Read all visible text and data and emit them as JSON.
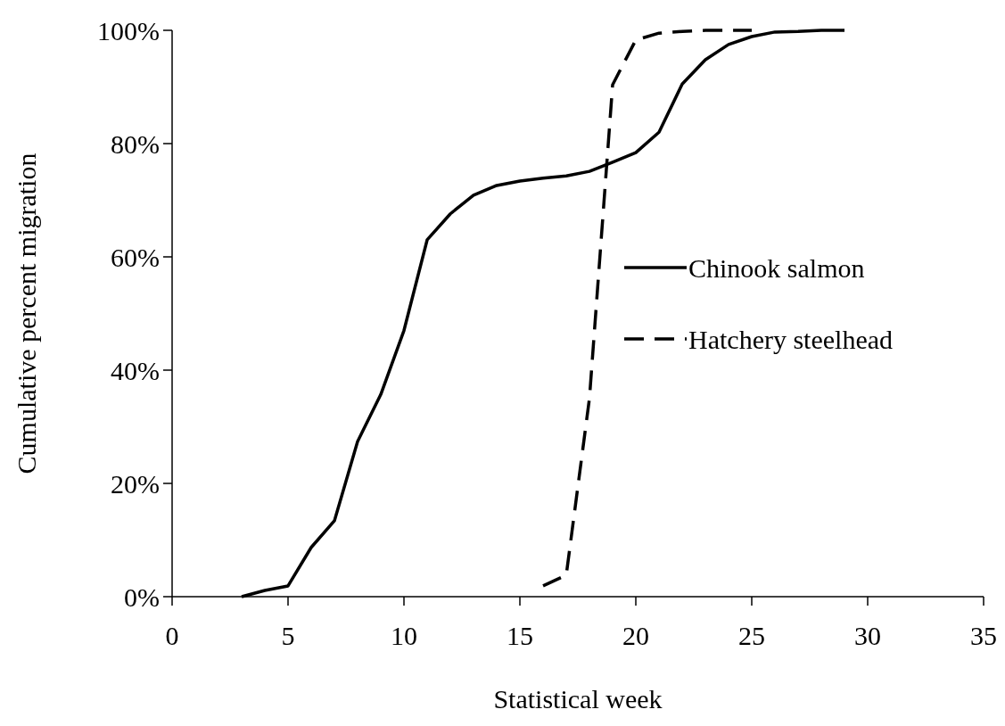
{
  "chart_data": {
    "type": "line",
    "xlabel": "Statistical week",
    "ylabel": "Cumulative percent migration",
    "xlim": [
      0,
      35
    ],
    "xticks": [
      0,
      5,
      10,
      15,
      20,
      25,
      30,
      35
    ],
    "ylim": [
      0,
      100
    ],
    "yticks": [
      {
        "value": 0,
        "label": "0%"
      },
      {
        "value": 20,
        "label": "20%"
      },
      {
        "value": 40,
        "label": "40%"
      },
      {
        "value": 60,
        "label": "60%"
      },
      {
        "value": 80,
        "label": "80%"
      },
      {
        "value": 100,
        "label": "100%"
      }
    ],
    "legend": "right",
    "grid": false,
    "series": [
      {
        "name": "Chinook salmon",
        "color": "#000000",
        "line_style": "solid",
        "x": [
          3,
          4,
          5,
          6,
          7,
          8,
          9,
          10,
          11,
          12,
          13,
          14,
          15,
          16,
          17,
          18,
          19,
          20,
          21,
          22,
          23,
          24,
          25,
          26,
          27,
          28,
          29
        ],
        "values": [
          0,
          1.1,
          1.9,
          8.7,
          13.4,
          27.4,
          35.7,
          47,
          63,
          67.6,
          70.9,
          72.6,
          73.4,
          73.9,
          74.3,
          75.1,
          76.7,
          78.4,
          82,
          90.5,
          94.8,
          97.5,
          98.9,
          99.7,
          99.8,
          100,
          100
        ]
      },
      {
        "name": "Hatchery steelhead",
        "color": "#000000",
        "line_style": "dashed",
        "x": [
          16,
          17,
          18,
          19,
          20,
          21,
          22,
          23,
          24,
          25
        ],
        "values": [
          1.9,
          3.8,
          35,
          90.4,
          98.3,
          99.5,
          99.8,
          100,
          100,
          100
        ]
      }
    ]
  }
}
